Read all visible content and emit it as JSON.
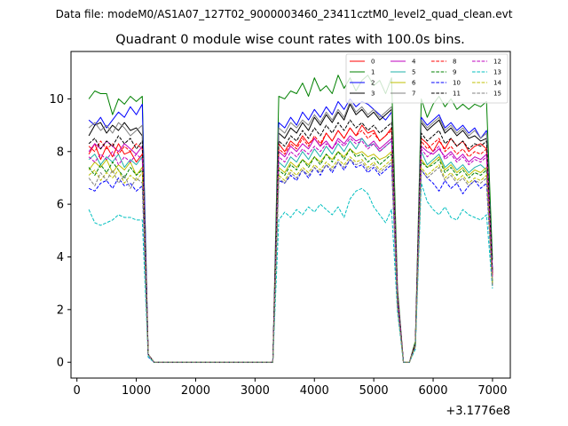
{
  "suptitle": "Data file: modeM0/AS1A07_127T02_9000003460_23411cztM0_level2_quad_clean.evt",
  "chart_data": {
    "type": "line",
    "title": "Quadrant 0 module wise count rates with 100.0s bins.",
    "xlabel": "",
    "ylabel": "",
    "x_offset_label": "+3.1776e8",
    "xlim": [
      -100,
      7300
    ],
    "ylim": [
      -0.6,
      11.8
    ],
    "xticks": [
      0,
      1000,
      2000,
      3000,
      4000,
      5000,
      6000,
      7000
    ],
    "yticks": [
      0,
      2,
      4,
      6,
      8,
      10
    ],
    "x": [
      200,
      300,
      400,
      500,
      600,
      700,
      800,
      900,
      1000,
      1100,
      1200,
      1300,
      1400,
      1500,
      1600,
      1700,
      1800,
      1900,
      2000,
      2100,
      2200,
      2300,
      2400,
      2500,
      2600,
      2700,
      2800,
      2900,
      3000,
      3100,
      3200,
      3300,
      3400,
      3500,
      3600,
      3700,
      3800,
      3900,
      4000,
      4100,
      4200,
      4300,
      4400,
      4500,
      4600,
      4700,
      4800,
      4900,
      5000,
      5100,
      5200,
      5300,
      5400,
      5500,
      5600,
      5700,
      5800,
      5900,
      6000,
      6100,
      6200,
      6300,
      6400,
      6500,
      6600,
      6700,
      6800,
      6900,
      7000
    ],
    "legend_position": "top-right",
    "series": [
      {
        "name": "0",
        "color": "#ff0000",
        "dash": "solid",
        "values": [
          7.9,
          8.3,
          7.7,
          8.2,
          7.8,
          8.3,
          7.9,
          8.0,
          7.6,
          7.9,
          0.3,
          0.0,
          0.0,
          0.0,
          0.0,
          0.0,
          0.0,
          0.0,
          0.0,
          0.0,
          0.0,
          0.0,
          0.0,
          0.0,
          0.0,
          0.0,
          0.0,
          0.0,
          0.0,
          0.0,
          0.0,
          0.0,
          8.3,
          8.0,
          8.4,
          8.2,
          8.6,
          8.3,
          8.5,
          8.2,
          8.7,
          8.4,
          8.8,
          8.5,
          8.9,
          8.6,
          9.0,
          8.7,
          8.8,
          8.4,
          8.6,
          8.9,
          2.5,
          0.0,
          0.0,
          0.7,
          8.5,
          8.3,
          8.0,
          8.4,
          8.1,
          8.5,
          8.2,
          8.4,
          8.0,
          8.2,
          8.3,
          8.1,
          3.4
        ]
      },
      {
        "name": "1",
        "color": "#008000",
        "dash": "solid",
        "values": [
          10.0,
          10.3,
          10.2,
          10.2,
          9.4,
          10.0,
          9.8,
          10.1,
          9.9,
          10.1,
          0.3,
          0.0,
          0.0,
          0.0,
          0.0,
          0.0,
          0.0,
          0.0,
          0.0,
          0.0,
          0.0,
          0.0,
          0.0,
          0.0,
          0.0,
          0.0,
          0.0,
          0.0,
          0.0,
          0.0,
          0.0,
          0.0,
          10.1,
          10.0,
          10.3,
          10.2,
          10.6,
          10.1,
          10.8,
          10.3,
          10.5,
          10.2,
          10.9,
          10.4,
          10.8,
          10.3,
          10.7,
          10.9,
          10.5,
          10.7,
          10.2,
          10.8,
          2.8,
          0.0,
          0.0,
          0.8,
          10.0,
          9.3,
          9.8,
          10.1,
          9.7,
          10.0,
          9.6,
          9.8,
          9.6,
          9.8,
          9.7,
          9.9,
          3.9
        ]
      },
      {
        "name": "2",
        "color": "#0000ff",
        "dash": "solid",
        "values": [
          9.2,
          9.0,
          9.3,
          8.9,
          9.2,
          9.5,
          9.3,
          9.7,
          9.4,
          9.8,
          0.3,
          0.0,
          0.0,
          0.0,
          0.0,
          0.0,
          0.0,
          0.0,
          0.0,
          0.0,
          0.0,
          0.0,
          0.0,
          0.0,
          0.0,
          0.0,
          0.0,
          0.0,
          0.0,
          0.0,
          0.0,
          0.0,
          9.1,
          8.9,
          9.3,
          9.0,
          9.5,
          9.2,
          9.6,
          9.3,
          9.7,
          9.4,
          9.9,
          9.6,
          10.0,
          9.7,
          9.9,
          9.8,
          9.6,
          9.4,
          9.2,
          9.5,
          2.6,
          0.0,
          0.0,
          0.7,
          9.3,
          9.0,
          9.2,
          9.4,
          8.9,
          9.1,
          8.8,
          9.0,
          8.7,
          8.9,
          8.5,
          8.8,
          3.5
        ]
      },
      {
        "name": "3",
        "color": "#000000",
        "dash": "solid",
        "values": [
          8.6,
          9.0,
          9.1,
          8.7,
          9.0,
          8.8,
          9.1,
          8.8,
          8.9,
          8.6,
          0.3,
          0.0,
          0.0,
          0.0,
          0.0,
          0.0,
          0.0,
          0.0,
          0.0,
          0.0,
          0.0,
          0.0,
          0.0,
          0.0,
          0.0,
          0.0,
          0.0,
          0.0,
          0.0,
          0.0,
          0.0,
          0.0,
          8.7,
          8.5,
          8.9,
          8.7,
          9.1,
          8.8,
          9.3,
          9.0,
          9.4,
          9.1,
          9.5,
          9.2,
          9.8,
          9.4,
          9.6,
          9.3,
          9.5,
          9.2,
          9.4,
          9.6,
          2.6,
          0.0,
          0.0,
          0.7,
          9.1,
          8.8,
          9.0,
          9.2,
          8.7,
          8.9,
          8.6,
          8.8,
          8.5,
          8.6,
          8.4,
          8.5,
          3.4
        ]
      },
      {
        "name": "4",
        "color": "#bf00bf",
        "dash": "solid",
        "values": [
          8.0,
          8.3,
          8.1,
          8.4,
          8.2,
          8.0,
          8.3,
          8.1,
          7.9,
          8.2,
          0.3,
          0.0,
          0.0,
          0.0,
          0.0,
          0.0,
          0.0,
          0.0,
          0.0,
          0.0,
          0.0,
          0.0,
          0.0,
          0.0,
          0.0,
          0.0,
          0.0,
          0.0,
          0.0,
          0.0,
          0.0,
          0.0,
          8.0,
          7.8,
          8.2,
          8.0,
          8.3,
          8.1,
          8.5,
          8.2,
          8.4,
          8.1,
          8.5,
          8.3,
          8.6,
          8.4,
          8.5,
          8.2,
          8.4,
          8.1,
          8.3,
          8.5,
          2.4,
          0.0,
          0.0,
          0.7,
          8.2,
          8.0,
          7.9,
          8.1,
          7.8,
          8.0,
          7.7,
          7.9,
          7.6,
          7.8,
          7.7,
          7.9,
          3.3
        ]
      },
      {
        "name": "5",
        "color": "#20b2aa",
        "dash": "solid",
        "values": [
          7.7,
          7.9,
          7.5,
          7.8,
          7.6,
          7.9,
          7.4,
          7.7,
          7.5,
          7.8,
          0.3,
          0.0,
          0.0,
          0.0,
          0.0,
          0.0,
          0.0,
          0.0,
          0.0,
          0.0,
          0.0,
          0.0,
          0.0,
          0.0,
          0.0,
          0.0,
          0.0,
          0.0,
          0.0,
          0.0,
          0.0,
          0.0,
          7.6,
          7.4,
          7.8,
          7.6,
          8.0,
          7.7,
          8.1,
          7.8,
          8.2,
          7.9,
          8.3,
          8.0,
          8.4,
          8.1,
          8.5,
          8.2,
          8.3,
          8.0,
          8.2,
          8.4,
          2.3,
          0.0,
          0.0,
          0.6,
          8.0,
          7.5,
          7.7,
          7.9,
          7.4,
          7.6,
          7.3,
          7.5,
          7.2,
          7.4,
          7.5,
          7.3,
          3.1
        ]
      },
      {
        "name": "6",
        "color": "#bfbf00",
        "dash": "solid",
        "values": [
          7.3,
          7.6,
          7.4,
          7.7,
          7.2,
          7.5,
          7.3,
          7.6,
          7.1,
          7.4,
          0.3,
          0.0,
          0.0,
          0.0,
          0.0,
          0.0,
          0.0,
          0.0,
          0.0,
          0.0,
          0.0,
          0.0,
          0.0,
          0.0,
          0.0,
          0.0,
          0.0,
          0.0,
          0.0,
          0.0,
          0.0,
          0.0,
          7.4,
          7.2,
          7.6,
          7.4,
          7.7,
          7.5,
          7.8,
          7.6,
          7.9,
          7.7,
          8.0,
          7.8,
          8.1,
          7.9,
          8.0,
          7.8,
          7.9,
          7.7,
          7.8,
          8.0,
          2.2,
          0.0,
          0.0,
          0.6,
          7.7,
          7.4,
          7.6,
          7.8,
          7.3,
          7.5,
          7.2,
          7.4,
          7.1,
          7.3,
          7.2,
          7.4,
          3.0
        ]
      },
      {
        "name": "7",
        "color": "#808080",
        "dash": "solid",
        "values": [
          8.9,
          9.1,
          8.8,
          9.0,
          8.7,
          9.1,
          8.9,
          8.6,
          8.8,
          9.0,
          0.3,
          0.0,
          0.0,
          0.0,
          0.0,
          0.0,
          0.0,
          0.0,
          0.0,
          0.0,
          0.0,
          0.0,
          0.0,
          0.0,
          0.0,
          0.0,
          0.0,
          0.0,
          0.0,
          0.0,
          0.0,
          0.0,
          8.9,
          8.7,
          9.1,
          8.9,
          9.2,
          9.0,
          9.4,
          9.1,
          9.5,
          9.2,
          9.6,
          9.3,
          9.9,
          9.5,
          9.7,
          9.4,
          9.6,
          9.3,
          9.5,
          9.7,
          2.6,
          0.0,
          0.0,
          0.7,
          9.2,
          8.9,
          9.1,
          9.3,
          8.8,
          9.0,
          8.7,
          8.9,
          8.6,
          8.8,
          8.5,
          8.7,
          3.4
        ]
      },
      {
        "name": "8",
        "color": "#ff0000",
        "dash": "dashed",
        "values": [
          8.2,
          8.0,
          8.4,
          8.1,
          8.3,
          7.9,
          8.2,
          8.0,
          8.3,
          8.1,
          0.3,
          0.0,
          0.0,
          0.0,
          0.0,
          0.0,
          0.0,
          0.0,
          0.0,
          0.0,
          0.0,
          0.0,
          0.0,
          0.0,
          0.0,
          0.0,
          0.0,
          0.0,
          0.0,
          0.0,
          0.0,
          0.0,
          8.1,
          7.9,
          8.3,
          8.1,
          8.5,
          8.2,
          8.6,
          8.3,
          8.7,
          8.4,
          8.8,
          8.5,
          8.9,
          8.6,
          8.8,
          8.5,
          8.7,
          8.4,
          8.6,
          8.8,
          2.5,
          0.0,
          0.0,
          0.7,
          8.4,
          8.1,
          8.3,
          8.5,
          8.0,
          8.2,
          7.9,
          8.1,
          7.8,
          8.0,
          7.9,
          8.1,
          3.3
        ]
      },
      {
        "name": "9",
        "color": "#008000",
        "dash": "dashed",
        "values": [
          7.4,
          7.1,
          7.5,
          7.2,
          7.6,
          7.3,
          7.0,
          7.4,
          7.1,
          7.3,
          0.3,
          0.0,
          0.0,
          0.0,
          0.0,
          0.0,
          0.0,
          0.0,
          0.0,
          0.0,
          0.0,
          0.0,
          0.0,
          0.0,
          0.0,
          0.0,
          0.0,
          0.0,
          0.0,
          0.0,
          0.0,
          0.0,
          7.3,
          7.1,
          7.5,
          7.3,
          7.7,
          7.4,
          7.8,
          7.5,
          7.9,
          7.6,
          8.0,
          7.7,
          8.1,
          7.8,
          7.9,
          7.6,
          7.8,
          7.5,
          7.7,
          7.9,
          2.2,
          0.0,
          0.0,
          0.6,
          7.6,
          7.4,
          7.5,
          7.7,
          7.2,
          7.4,
          7.1,
          7.3,
          7.0,
          7.2,
          7.1,
          7.3,
          3.0
        ]
      },
      {
        "name": "10",
        "color": "#0000ff",
        "dash": "dashed",
        "values": [
          6.6,
          6.5,
          6.8,
          6.9,
          6.6,
          7.0,
          6.7,
          6.8,
          6.5,
          6.7,
          0.2,
          0.0,
          0.0,
          0.0,
          0.0,
          0.0,
          0.0,
          0.0,
          0.0,
          0.0,
          0.0,
          0.0,
          0.0,
          0.0,
          0.0,
          0.0,
          0.0,
          0.0,
          0.0,
          0.0,
          0.0,
          0.0,
          6.9,
          6.8,
          7.1,
          6.9,
          7.3,
          7.0,
          7.4,
          7.1,
          7.5,
          7.2,
          7.6,
          7.3,
          7.7,
          7.4,
          7.5,
          7.2,
          7.4,
          7.1,
          7.3,
          7.5,
          2.1,
          0.0,
          0.0,
          0.6,
          7.3,
          7.0,
          6.8,
          6.5,
          6.9,
          6.6,
          6.8,
          6.4,
          6.7,
          6.9,
          6.6,
          6.8,
          2.9
        ]
      },
      {
        "name": "11",
        "color": "#000000",
        "dash": "dashed",
        "values": [
          8.3,
          8.5,
          8.1,
          8.4,
          8.2,
          8.6,
          8.3,
          8.5,
          8.1,
          8.4,
          0.3,
          0.0,
          0.0,
          0.0,
          0.0,
          0.0,
          0.0,
          0.0,
          0.0,
          0.0,
          0.0,
          0.0,
          0.0,
          0.0,
          0.0,
          0.0,
          0.0,
          0.0,
          0.0,
          0.0,
          0.0,
          0.0,
          8.4,
          8.2,
          8.6,
          8.4,
          8.8,
          8.5,
          8.9,
          8.6,
          9.0,
          8.7,
          9.1,
          8.8,
          9.2,
          8.9,
          9.1,
          8.8,
          9.0,
          8.7,
          8.9,
          9.1,
          2.5,
          0.0,
          0.0,
          0.7,
          8.7,
          8.4,
          8.6,
          8.8,
          8.3,
          8.5,
          8.2,
          8.4,
          8.1,
          8.3,
          8.2,
          8.4,
          3.4
        ]
      },
      {
        "name": "12",
        "color": "#bf00bf",
        "dash": "dashed",
        "values": [
          7.8,
          7.6,
          7.9,
          7.7,
          8.0,
          7.5,
          7.8,
          7.6,
          7.9,
          7.7,
          0.3,
          0.0,
          0.0,
          0.0,
          0.0,
          0.0,
          0.0,
          0.0,
          0.0,
          0.0,
          0.0,
          0.0,
          0.0,
          0.0,
          0.0,
          0.0,
          0.0,
          0.0,
          0.0,
          0.0,
          0.0,
          0.0,
          7.8,
          7.6,
          8.0,
          7.8,
          8.1,
          7.9,
          8.2,
          8.0,
          8.3,
          8.1,
          8.4,
          8.2,
          8.5,
          8.3,
          8.4,
          8.1,
          8.3,
          8.0,
          8.2,
          8.4,
          2.4,
          0.0,
          0.0,
          0.6,
          8.1,
          7.8,
          8.0,
          8.2,
          7.7,
          7.9,
          7.6,
          7.8,
          7.5,
          7.7,
          7.6,
          7.8,
          3.2
        ]
      },
      {
        "name": "13",
        "color": "#00bfbf",
        "dash": "dashed",
        "values": [
          5.8,
          5.3,
          5.2,
          5.3,
          5.4,
          5.6,
          5.5,
          5.5,
          5.4,
          5.4,
          0.2,
          0.0,
          0.0,
          0.0,
          0.0,
          0.0,
          0.0,
          0.0,
          0.0,
          0.0,
          0.0,
          0.0,
          0.0,
          0.0,
          0.0,
          0.0,
          0.0,
          0.0,
          0.0,
          0.0,
          0.0,
          0.0,
          5.4,
          5.7,
          5.5,
          5.8,
          5.6,
          5.9,
          5.7,
          6.0,
          5.8,
          5.6,
          5.9,
          5.5,
          6.2,
          6.5,
          6.6,
          6.4,
          5.9,
          5.6,
          5.3,
          5.8,
          1.9,
          0.0,
          0.0,
          0.5,
          6.8,
          6.1,
          5.8,
          5.6,
          5.9,
          5.5,
          5.4,
          5.8,
          5.6,
          5.5,
          5.4,
          5.6,
          2.8
        ]
      },
      {
        "name": "14",
        "color": "#bfbf00",
        "dash": "dashed",
        "values": [
          7.1,
          7.3,
          6.9,
          7.2,
          7.0,
          7.3,
          6.8,
          7.1,
          6.9,
          7.2,
          0.3,
          0.0,
          0.0,
          0.0,
          0.0,
          0.0,
          0.0,
          0.0,
          0.0,
          0.0,
          0.0,
          0.0,
          0.0,
          0.0,
          0.0,
          0.0,
          0.0,
          0.0,
          0.0,
          0.0,
          0.0,
          0.0,
          7.1,
          6.9,
          7.3,
          7.1,
          7.4,
          7.2,
          7.5,
          7.3,
          7.6,
          7.4,
          7.7,
          7.5,
          7.8,
          7.6,
          7.7,
          7.4,
          7.6,
          7.3,
          7.5,
          7.7,
          2.1,
          0.0,
          0.0,
          0.6,
          7.4,
          7.1,
          7.3,
          7.5,
          7.0,
          7.2,
          6.9,
          7.1,
          6.8,
          7.0,
          6.9,
          7.1,
          2.9
        ]
      },
      {
        "name": "15",
        "color": "#808080",
        "dash": "dashed",
        "values": [
          7.0,
          6.7,
          7.2,
          6.9,
          7.3,
          6.8,
          7.1,
          6.6,
          7.0,
          6.8,
          0.3,
          0.0,
          0.0,
          0.0,
          0.0,
          0.0,
          0.0,
          0.0,
          0.0,
          0.0,
          0.0,
          0.0,
          0.0,
          0.0,
          0.0,
          0.0,
          0.0,
          0.0,
          0.0,
          0.0,
          0.0,
          0.0,
          7.0,
          6.8,
          7.2,
          7.0,
          7.3,
          7.1,
          7.4,
          7.2,
          7.5,
          7.3,
          7.6,
          7.4,
          7.7,
          7.5,
          7.6,
          7.3,
          7.5,
          7.2,
          7.4,
          7.6,
          2.1,
          0.0,
          0.0,
          0.6,
          7.3,
          7.0,
          7.2,
          7.4,
          6.9,
          7.1,
          6.8,
          7.0,
          6.7,
          6.9,
          6.8,
          7.0,
          2.9
        ]
      }
    ]
  }
}
